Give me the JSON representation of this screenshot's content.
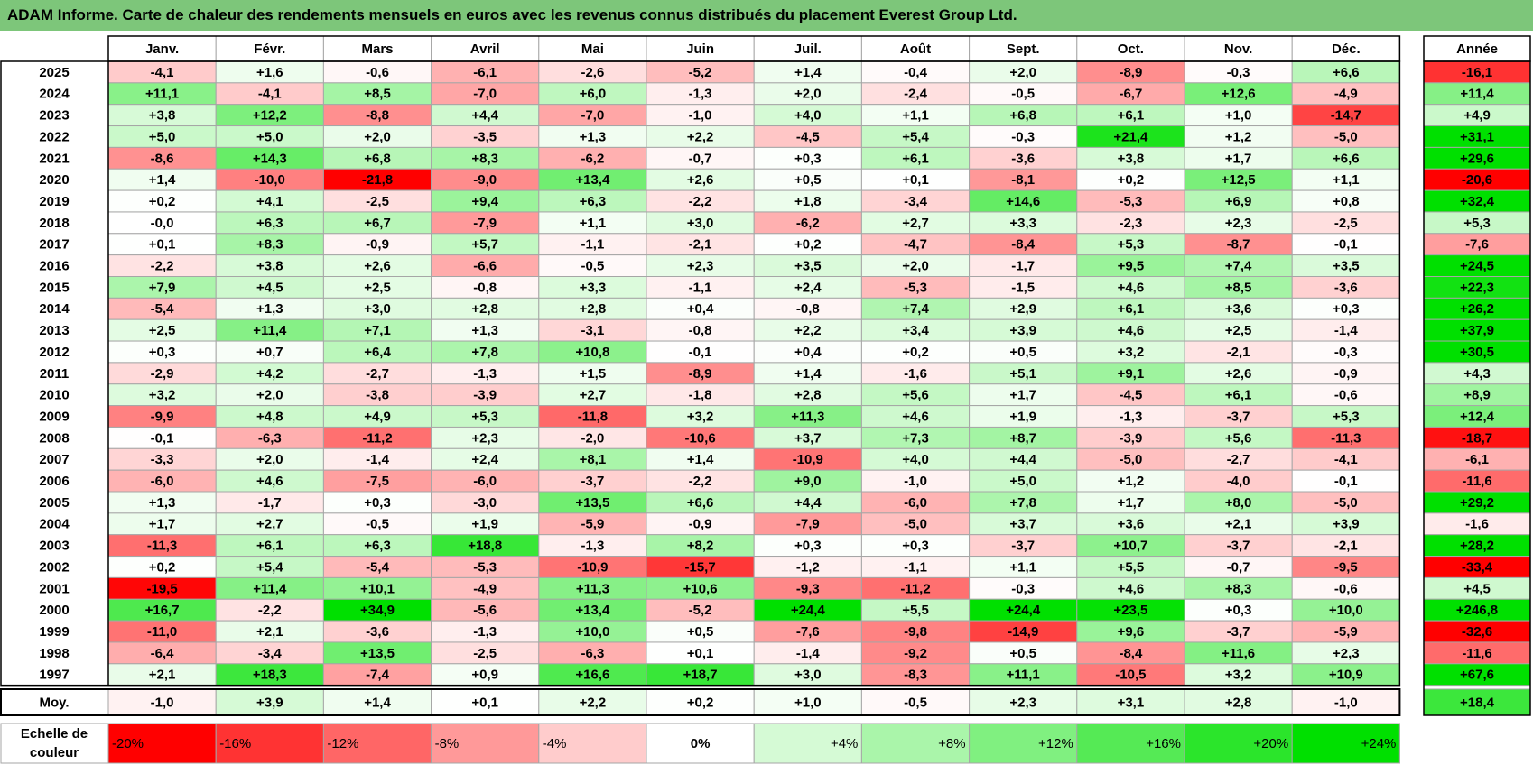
{
  "title": "ADAM Informe. Carte de chaleur des rendements mensuels en euros avec les revenus connus distribués du placement Everest Group Ltd.",
  "chart_data": {
    "type": "heatmap",
    "title": "ADAM Informe. Carte de chaleur des rendements mensuels en euros avec les revenus connus distribués du placement Everest Group Ltd.",
    "columns": [
      "Janv.",
      "Févr.",
      "Mars",
      "Avril",
      "Mai",
      "Juin",
      "Juil.",
      "Août",
      "Sept.",
      "Oct.",
      "Nov.",
      "Déc."
    ],
    "year_header": "Année",
    "rows": [
      {
        "label": "2025",
        "values": [
          "-4,1",
          "+1,6",
          "-0,6",
          "-6,1",
          "-2,6",
          "-5,2",
          "+1,4",
          "-0,4",
          "+2,0",
          "-8,9",
          "-0,3",
          "+6,6"
        ],
        "year": "-16,1"
      },
      {
        "label": "2024",
        "values": [
          "+11,1",
          "-4,1",
          "+8,5",
          "-7,0",
          "+6,0",
          "-1,3",
          "+2,0",
          "-2,4",
          "-0,5",
          "-6,7",
          "+12,6",
          "-4,9"
        ],
        "year": "+11,4"
      },
      {
        "label": "2023",
        "values": [
          "+3,8",
          "+12,2",
          "-8,8",
          "+4,4",
          "-7,0",
          "-1,0",
          "+4,0",
          "+1,1",
          "+6,8",
          "+6,1",
          "+1,0",
          "-14,7"
        ],
        "year": "+4,9"
      },
      {
        "label": "2022",
        "values": [
          "+5,0",
          "+5,0",
          "+2,0",
          "-3,5",
          "+1,3",
          "+2,2",
          "-4,5",
          "+5,4",
          "-0,3",
          "+21,4",
          "+1,2",
          "-5,0"
        ],
        "year": "+31,1"
      },
      {
        "label": "2021",
        "values": [
          "-8,6",
          "+14,3",
          "+6,8",
          "+8,3",
          "-6,2",
          "-0,7",
          "+0,3",
          "+6,1",
          "-3,6",
          "+3,8",
          "+1,7",
          "+6,6"
        ],
        "year": "+29,6"
      },
      {
        "label": "2020",
        "values": [
          "+1,4",
          "-10,0",
          "-21,8",
          "-9,0",
          "+13,4",
          "+2,6",
          "+0,5",
          "+0,1",
          "-8,1",
          "+0,2",
          "+12,5",
          "+1,1"
        ],
        "year": "-20,6"
      },
      {
        "label": "2019",
        "values": [
          "+0,2",
          "+4,1",
          "-2,5",
          "+9,4",
          "+6,3",
          "-2,2",
          "+1,8",
          "-3,4",
          "+14,6",
          "-5,3",
          "+6,9",
          "+0,8"
        ],
        "year": "+32,4"
      },
      {
        "label": "2018",
        "values": [
          "-0,0",
          "+6,3",
          "+6,7",
          "-7,9",
          "+1,1",
          "+3,0",
          "-6,2",
          "+2,7",
          "+3,3",
          "-2,3",
          "+2,3",
          "-2,5"
        ],
        "year": "+5,3"
      },
      {
        "label": "2017",
        "values": [
          "+0,1",
          "+8,3",
          "-0,9",
          "+5,7",
          "-1,1",
          "-2,1",
          "+0,2",
          "-4,7",
          "-8,4",
          "+5,3",
          "-8,7",
          "-0,1"
        ],
        "year": "-7,6"
      },
      {
        "label": "2016",
        "values": [
          "-2,2",
          "+3,8",
          "+2,6",
          "-6,6",
          "-0,5",
          "+2,3",
          "+3,5",
          "+2,0",
          "-1,7",
          "+9,5",
          "+7,4",
          "+3,5"
        ],
        "year": "+24,5"
      },
      {
        "label": "2015",
        "values": [
          "+7,9",
          "+4,5",
          "+2,5",
          "-0,8",
          "+3,3",
          "-1,1",
          "+2,4",
          "-5,3",
          "-1,5",
          "+4,6",
          "+8,5",
          "-3,6"
        ],
        "year": "+22,3"
      },
      {
        "label": "2014",
        "values": [
          "-5,4",
          "+1,3",
          "+3,0",
          "+2,8",
          "+2,8",
          "+0,4",
          "-0,8",
          "+7,4",
          "+2,9",
          "+6,1",
          "+3,6",
          "+0,3"
        ],
        "year": "+26,2"
      },
      {
        "label": "2013",
        "values": [
          "+2,5",
          "+11,4",
          "+7,1",
          "+1,3",
          "-3,1",
          "-0,8",
          "+2,2",
          "+3,4",
          "+3,9",
          "+4,6",
          "+2,5",
          "-1,4"
        ],
        "year": "+37,9"
      },
      {
        "label": "2012",
        "values": [
          "+0,3",
          "+0,7",
          "+6,4",
          "+7,8",
          "+10,8",
          "-0,1",
          "+0,4",
          "+0,2",
          "+0,5",
          "+3,2",
          "-2,1",
          "-0,3"
        ],
        "year": "+30,5"
      },
      {
        "label": "2011",
        "values": [
          "-2,9",
          "+4,2",
          "-2,7",
          "-1,3",
          "+1,5",
          "-8,9",
          "+1,4",
          "-1,6",
          "+5,1",
          "+9,1",
          "+2,6",
          "-0,9"
        ],
        "year": "+4,3"
      },
      {
        "label": "2010",
        "values": [
          "+3,2",
          "+2,0",
          "-3,8",
          "-3,9",
          "+2,7",
          "-1,8",
          "+2,8",
          "+5,6",
          "+1,7",
          "-4,5",
          "+6,1",
          "-0,6"
        ],
        "year": "+8,9"
      },
      {
        "label": "2009",
        "values": [
          "-9,9",
          "+4,8",
          "+4,9",
          "+5,3",
          "-11,8",
          "+3,2",
          "+11,3",
          "+4,6",
          "+1,9",
          "-1,3",
          "-3,7",
          "+5,3"
        ],
        "year": "+12,4"
      },
      {
        "label": "2008",
        "values": [
          "-0,1",
          "-6,3",
          "-11,2",
          "+2,3",
          "-2,0",
          "-10,6",
          "+3,7",
          "+7,3",
          "+8,7",
          "-3,9",
          "+5,6",
          "-11,3"
        ],
        "year": "-18,7"
      },
      {
        "label": "2007",
        "values": [
          "-3,3",
          "+2,0",
          "-1,4",
          "+2,4",
          "+8,1",
          "+1,4",
          "-10,9",
          "+4,0",
          "+4,4",
          "-5,0",
          "-2,7",
          "-4,1"
        ],
        "year": "-6,1"
      },
      {
        "label": "2006",
        "values": [
          "-6,0",
          "+4,6",
          "-7,5",
          "-6,0",
          "-3,7",
          "-2,2",
          "+9,0",
          "-1,0",
          "+5,0",
          "+1,2",
          "-4,0",
          "-0,1"
        ],
        "year": "-11,6"
      },
      {
        "label": "2005",
        "values": [
          "+1,3",
          "-1,7",
          "+0,3",
          "-3,0",
          "+13,5",
          "+6,6",
          "+4,4",
          "-6,0",
          "+7,8",
          "+1,7",
          "+8,0",
          "-5,0"
        ],
        "year": "+29,2"
      },
      {
        "label": "2004",
        "values": [
          "+1,7",
          "+2,7",
          "-0,5",
          "+1,9",
          "-5,9",
          "-0,9",
          "-7,9",
          "-5,0",
          "+3,7",
          "+3,6",
          "+2,1",
          "+3,9"
        ],
        "year": "-1,6"
      },
      {
        "label": "2003",
        "values": [
          "-11,3",
          "+6,1",
          "+6,3",
          "+18,8",
          "-1,3",
          "+8,2",
          "+0,3",
          "+0,3",
          "-3,7",
          "+10,7",
          "-3,7",
          "-2,1"
        ],
        "year": "+28,2"
      },
      {
        "label": "2002",
        "values": [
          "+0,2",
          "+5,4",
          "-5,4",
          "-5,3",
          "-10,9",
          "-15,7",
          "-1,2",
          "-1,1",
          "+1,1",
          "+5,5",
          "-0,7",
          "-9,5"
        ],
        "year": "-33,4"
      },
      {
        "label": "2001",
        "values": [
          "-19,5",
          "+11,4",
          "+10,1",
          "-4,9",
          "+11,3",
          "+10,6",
          "-9,3",
          "-11,2",
          "-0,3",
          "+4,6",
          "+8,3",
          "-0,6"
        ],
        "year": "+4,5"
      },
      {
        "label": "2000",
        "values": [
          "+16,7",
          "-2,2",
          "+34,9",
          "-5,6",
          "+13,4",
          "-5,2",
          "+24,4",
          "+5,5",
          "+24,4",
          "+23,5",
          "+0,3",
          "+10,0"
        ],
        "year": "+246,8"
      },
      {
        "label": "1999",
        "values": [
          "-11,0",
          "+2,1",
          "-3,6",
          "-1,3",
          "+10,0",
          "+0,5",
          "-7,6",
          "-9,8",
          "-14,9",
          "+9,6",
          "-3,7",
          "-5,9"
        ],
        "year": "-32,6"
      },
      {
        "label": "1998",
        "values": [
          "-6,4",
          "-3,4",
          "+13,5",
          "-2,5",
          "-6,3",
          "+0,1",
          "-1,4",
          "-9,2",
          "+0,5",
          "-8,4",
          "+11,6",
          "+2,3"
        ],
        "year": "-11,6"
      },
      {
        "label": "1997",
        "values": [
          "+2,1",
          "+18,3",
          "-7,4",
          "+0,9",
          "+16,6",
          "+18,7",
          "+3,0",
          "-8,3",
          "+11,1",
          "-10,5",
          "+3,2",
          "+10,9"
        ],
        "year": "+67,6"
      }
    ],
    "average": {
      "label": "Moy.",
      "values": [
        "-1,0",
        "+3,9",
        "+1,4",
        "+0,1",
        "+2,2",
        "+0,2",
        "+1,0",
        "-0,5",
        "+2,3",
        "+3,1",
        "+2,8",
        "-1,0"
      ],
      "year": "+18,4"
    },
    "scale": {
      "label_line1": "Echelle de",
      "label_line2": "couleur",
      "steps": [
        "-20%",
        "-16%",
        "-12%",
        "-8%",
        "-4%",
        "0%",
        "+4%",
        "+8%",
        "+12%",
        "+16%",
        "+20%",
        "+24%"
      ],
      "step_values": [
        -20,
        -16,
        -12,
        -8,
        -4,
        0,
        4,
        8,
        12,
        16,
        20,
        24
      ]
    },
    "colors": {
      "title_bg": "#7dc67a",
      "negative_max": "#ff0000",
      "positive_max": "#00e000",
      "neutral": "#ffffff",
      "grid": "#a6a6a6",
      "border": "#000000"
    }
  }
}
